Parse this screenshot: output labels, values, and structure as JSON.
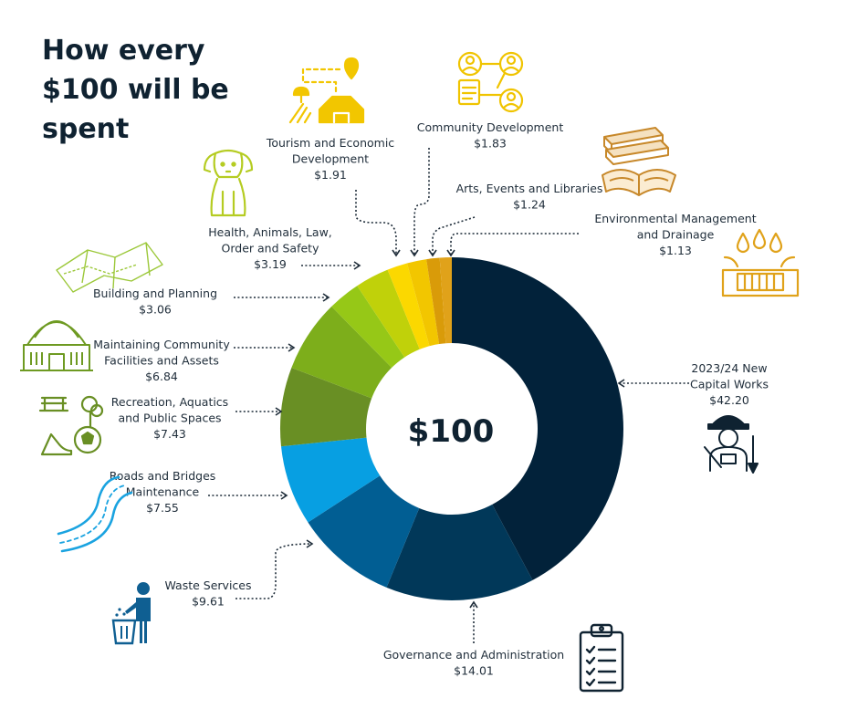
{
  "page": {
    "title": "How every $100 will be spent"
  },
  "chart_data": {
    "type": "pie",
    "title": "How every $100 will be spent",
    "center_label": "$100",
    "slices": [
      {
        "name": "2023/24 New Capital Works",
        "label_lines": [
          "2023/24 New",
          "Capital Works"
        ],
        "value": 42.2,
        "value_label": "$42.20",
        "color": "#02223a",
        "icon": "construction-worker-icon"
      },
      {
        "name": "Governance and Administration",
        "label_lines": [
          "Governance and Administration"
        ],
        "value": 14.01,
        "value_label": "$14.01",
        "color": "#013859",
        "icon": "clipboard-checklist-icon"
      },
      {
        "name": "Waste Services",
        "label_lines": [
          "Waste Services"
        ],
        "value": 9.61,
        "value_label": "$9.61",
        "color": "#015e93",
        "icon": "person-bin-icon"
      },
      {
        "name": "Roads and Bridges Maintenance",
        "label_lines": [
          "Roads and Bridges",
          "Maintenance"
        ],
        "value": 7.55,
        "value_label": "$7.55",
        "color": "#079fe2",
        "icon": "road-icon"
      },
      {
        "name": "Recreation, Aquatics and Public Spaces",
        "label_lines": [
          "Recreation, Aquatics",
          "and Public Spaces"
        ],
        "value": 7.43,
        "value_label": "$7.43",
        "color": "#698f24",
        "icon": "park-sports-icon"
      },
      {
        "name": "Maintaining Community Facilities and Assets",
        "label_lines": [
          "Maintaining Community",
          "Facilities and Assets"
        ],
        "value": 6.84,
        "value_label": "$6.84",
        "color": "#7dae1b",
        "icon": "community-hall-icon"
      },
      {
        "name": "Building and Planning",
        "label_lines": [
          "Building and Planning"
        ],
        "value": 3.06,
        "value_label": "$3.06",
        "color": "#96c817",
        "icon": "map-icon"
      },
      {
        "name": "Health, Animals, Law, Order and Safety",
        "label_lines": [
          "Health, Animals, Law,",
          "Order and Safety"
        ],
        "value": 3.19,
        "value_label": "$3.19",
        "color": "#c0d10a",
        "icon": "dog-icon"
      },
      {
        "name": "Tourism and Economic Development",
        "label_lines": [
          "Tourism and Economic",
          "Development"
        ],
        "value": 1.91,
        "value_label": "$1.91",
        "color": "#fbd800",
        "icon": "farm-route-icon"
      },
      {
        "name": "Community Development",
        "label_lines": [
          "Community Development"
        ],
        "value": 1.83,
        "value_label": "$1.83",
        "color": "#f2c600",
        "icon": "people-network-icon"
      },
      {
        "name": "Arts, Events and Libraries",
        "label_lines": [
          "Arts, Events and Libraries"
        ],
        "value": 1.24,
        "value_label": "$1.24",
        "color": "#d99b09",
        "icon": "books-icon"
      },
      {
        "name": "Environmental Management and Drainage",
        "label_lines": [
          "Environmental Management",
          "and Drainage"
        ],
        "value": 1.13,
        "value_label": "$1.13",
        "color": "#e0a21a",
        "icon": "drainage-icon"
      }
    ],
    "legend": "none"
  }
}
